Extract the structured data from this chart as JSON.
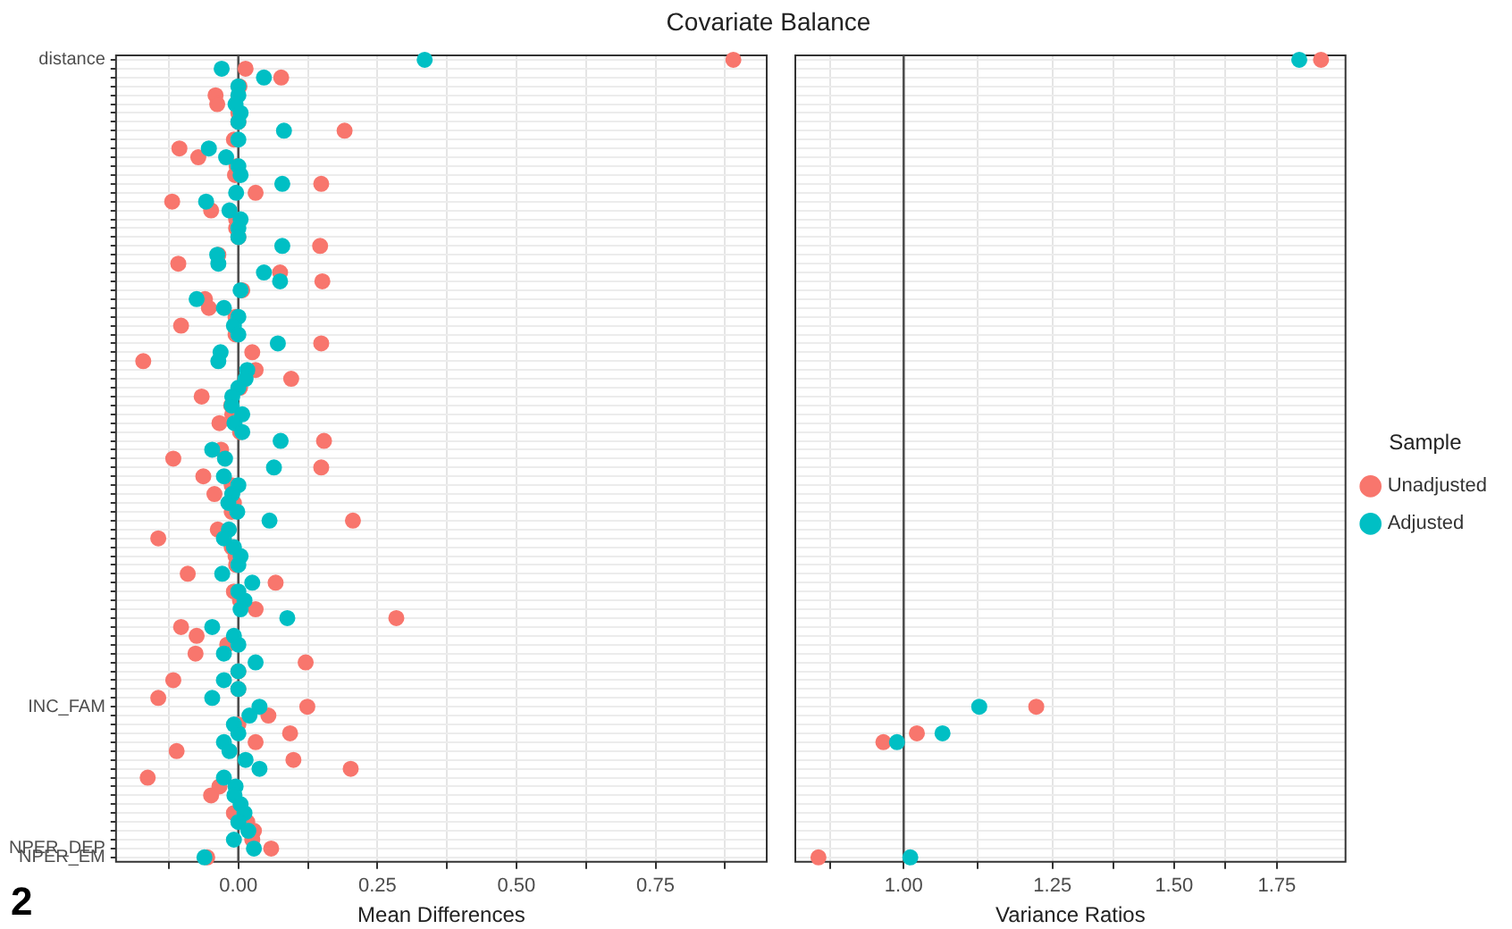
{
  "chart_data": [
    {
      "type": "scatter",
      "orientation": "horizontal",
      "title": "Covariate Balance",
      "xlabel": "Mean Differences",
      "annotations": [
        "2"
      ],
      "categories": [
        "distance",
        null,
        null,
        null,
        null,
        null,
        null,
        null,
        null,
        null,
        null,
        null,
        null,
        null,
        null,
        null,
        null,
        null,
        null,
        null,
        null,
        null,
        null,
        null,
        null,
        null,
        null,
        null,
        null,
        null,
        null,
        null,
        null,
        null,
        null,
        null,
        null,
        null,
        null,
        null,
        null,
        null,
        null,
        null,
        null,
        null,
        null,
        null,
        null,
        null,
        null,
        null,
        null,
        null,
        null,
        null,
        null,
        null,
        null,
        null,
        null,
        null,
        null,
        null,
        null,
        null,
        null,
        null,
        null,
        null,
        null,
        null,
        null,
        "INC_FAM",
        null,
        null,
        null,
        null,
        null,
        null,
        null,
        null,
        null,
        null,
        null,
        null,
        null,
        null,
        null,
        "NPER_DEP",
        "NPER_EM"
      ],
      "series": [
        {
          "color": "#f8766d",
          "values": [
            0.89,
            0.013,
            0.077,
            0.002,
            -0.041,
            -0.038,
            0,
            0,
            0.191,
            -0.008,
            -0.106,
            -0.072,
            -0.003,
            -0.006,
            0.149,
            0.031,
            -0.119,
            -0.049,
            -0.004,
            -0.004,
            0,
            0.147,
            -0.036,
            -0.108,
            0.075,
            0.151,
            0.007,
            -0.06,
            -0.053,
            -0.005,
            -0.103,
            -0.005,
            0.149,
            0.025,
            -0.171,
            0.031,
            0.095,
            0.003,
            -0.066,
            -0.013,
            -0.011,
            -0.034,
            0.003,
            0.154,
            -0.031,
            -0.117,
            0.149,
            -0.063,
            -0.012,
            -0.043,
            -0.008,
            -0.012,
            0.206,
            -0.037,
            -0.144,
            -0.012,
            -0.005,
            -0.004,
            -0.091,
            0.067,
            -0.008,
            0.003,
            0.031,
            0.284,
            -0.103,
            -0.075,
            -0.02,
            -0.077,
            0.121,
            0,
            -0.117,
            0,
            -0.144,
            0.124,
            0.054,
            0,
            0.093,
            0.031,
            -0.111,
            0.099,
            0.202,
            -0.163,
            -0.034,
            -0.049,
            null,
            -0.008,
            0.016,
            0.028,
            0.025,
            0.059,
            -0.056
          ]
        },
        {
          "color": "#00bfc4",
          "values": [
            0.335,
            -0.03,
            0.046,
            0,
            0,
            -0.005,
            0.004,
            0,
            0.082,
            0,
            -0.053,
            -0.022,
            0,
            0.004,
            0.079,
            -0.004,
            -0.058,
            -0.016,
            0.004,
            0,
            0,
            0.079,
            -0.038,
            -0.036,
            0.046,
            0.075,
            0.004,
            -0.075,
            -0.026,
            0,
            -0.008,
            0,
            0.071,
            -0.032,
            -0.036,
            0.016,
            0.013,
            0,
            -0.011,
            -0.012,
            0.007,
            -0.007,
            0.007,
            0.076,
            -0.047,
            -0.024,
            0.064,
            -0.026,
            0,
            -0.011,
            -0.018,
            -0.002,
            0.056,
            -0.017,
            -0.026,
            -0.008,
            0.004,
            0,
            -0.029,
            0.025,
            0,
            0.011,
            0.004,
            0.088,
            -0.047,
            -0.008,
            0,
            -0.026,
            0.031,
            0,
            -0.026,
            0,
            -0.047,
            0.038,
            0.02,
            -0.008,
            0,
            -0.026,
            -0.016,
            0.013,
            0.038,
            -0.026,
            -0.005,
            -0.007,
            0.004,
            0.011,
            0,
            0.018,
            -0.008,
            0.028,
            -0.061
          ]
        }
      ],
      "xlim": [
        -0.22,
        0.95
      ],
      "xticks": [
        {
          "value": -0.125,
          "label": null
        },
        {
          "value": 0,
          "label": "0.00"
        },
        {
          "value": 0.125,
          "label": null
        },
        {
          "value": 0.25,
          "label": "0.25"
        },
        {
          "value": 0.375,
          "label": null
        },
        {
          "value": 0.5,
          "label": "0.50"
        },
        {
          "value": 0.625,
          "label": null
        },
        {
          "value": 0.75,
          "label": "0.75"
        },
        {
          "value": 0.875,
          "label": null
        }
      ],
      "ref_lines": [
        {
          "axis": "x",
          "value": 0,
          "color": "#4d4d4d"
        }
      ],
      "grid": true,
      "legend": false,
      "marker": "circle"
    },
    {
      "type": "scatter",
      "orientation": "horizontal",
      "xlabel": "Variance Ratios",
      "legend_title": "Sample",
      "tick_labels": "x",
      "log": "x",
      "categories": [
        null,
        null,
        null,
        null,
        null,
        null,
        null,
        null,
        null,
        null,
        null,
        null,
        null,
        null,
        null,
        null,
        null,
        null,
        null,
        null,
        null,
        null,
        null,
        null,
        null,
        null,
        null,
        null,
        null,
        null,
        null,
        null,
        null,
        null,
        null,
        null,
        null,
        null,
        null,
        null,
        null,
        null,
        null,
        null,
        null,
        null,
        null,
        null,
        null,
        null,
        null,
        null,
        null,
        null,
        null,
        null,
        null,
        null,
        null,
        null,
        null,
        null,
        null,
        null,
        null,
        null,
        null,
        null,
        null,
        null,
        null,
        null,
        null,
        null,
        null,
        null,
        null,
        null,
        null,
        null,
        null,
        null,
        null,
        null,
        null,
        null,
        null,
        null,
        null,
        null,
        null
      ],
      "series": [
        {
          "name": "Unadjusted",
          "color": "#f8766d",
          "values": [
            1.87,
            null,
            null,
            null,
            null,
            null,
            null,
            null,
            null,
            null,
            null,
            null,
            null,
            null,
            null,
            null,
            null,
            null,
            null,
            null,
            null,
            null,
            null,
            null,
            null,
            null,
            null,
            null,
            null,
            null,
            null,
            null,
            null,
            null,
            null,
            null,
            null,
            null,
            null,
            null,
            null,
            null,
            null,
            null,
            null,
            null,
            null,
            null,
            null,
            null,
            null,
            null,
            null,
            null,
            null,
            null,
            null,
            null,
            null,
            null,
            null,
            null,
            null,
            null,
            null,
            null,
            null,
            null,
            null,
            null,
            null,
            null,
            null,
            1.22,
            null,
            null,
            1.02,
            0.97,
            null,
            null,
            null,
            null,
            null,
            null,
            null,
            null,
            null,
            null,
            null,
            null,
            0.88
          ]
        },
        {
          "name": "Adjusted",
          "color": "#00bfc4",
          "values": [
            1.81,
            null,
            null,
            null,
            null,
            null,
            null,
            null,
            null,
            null,
            null,
            null,
            null,
            null,
            null,
            null,
            null,
            null,
            null,
            null,
            null,
            null,
            null,
            null,
            null,
            null,
            null,
            null,
            null,
            null,
            null,
            null,
            null,
            null,
            null,
            null,
            null,
            null,
            null,
            null,
            null,
            null,
            null,
            null,
            null,
            null,
            null,
            null,
            null,
            null,
            null,
            null,
            null,
            null,
            null,
            null,
            null,
            null,
            null,
            null,
            null,
            null,
            null,
            null,
            null,
            null,
            null,
            null,
            null,
            null,
            null,
            null,
            null,
            1.12,
            null,
            null,
            1.06,
            0.99,
            null,
            null,
            null,
            null,
            null,
            null,
            null,
            null,
            null,
            null,
            null,
            null,
            1.01
          ]
        }
      ],
      "xlim": [
        0.85,
        1.94
      ],
      "xticks": [
        {
          "value": 0.896,
          "label": null
        },
        {
          "value": 1,
          "label": "1.00"
        },
        {
          "value": 1.118,
          "label": null
        },
        {
          "value": 1.25,
          "label": "1.25"
        },
        {
          "value": 1.369,
          "label": null
        },
        {
          "value": 1.5,
          "label": "1.50"
        },
        {
          "value": 1.62,
          "label": null
        },
        {
          "value": 1.75,
          "label": "1.75"
        }
      ],
      "ref_lines": [
        {
          "axis": "x",
          "value": 1,
          "color": "#4d4d4d"
        }
      ],
      "grid": true,
      "legend": "right",
      "marker": "circle"
    }
  ]
}
